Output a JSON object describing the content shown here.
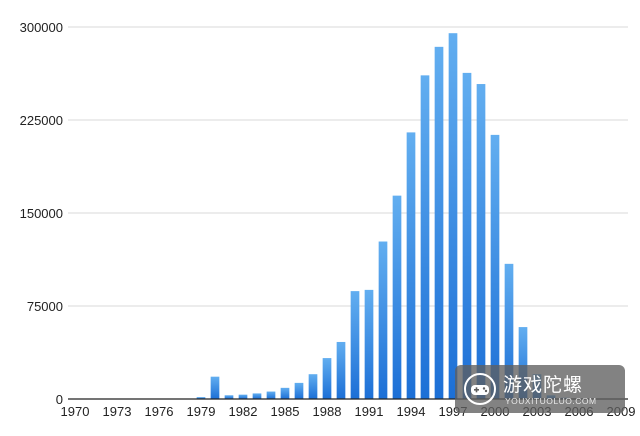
{
  "chart_data": {
    "type": "bar",
    "title": "",
    "xlabel": "",
    "ylabel": "",
    "ylim": [
      0,
      300000
    ],
    "y_ticks": [
      "0",
      "75000",
      "150000",
      "225000",
      "300000"
    ],
    "x_tick_labels": [
      "1970",
      "1973",
      "1976",
      "1979",
      "1982",
      "1985",
      "1988",
      "1991",
      "1994",
      "1997",
      "2000",
      "2003",
      "2006",
      "2009"
    ],
    "grid": "horizontal",
    "legend": "none",
    "bar_color_top": "#62aef0",
    "bar_color_bottom": "#1c6fd6",
    "categories": [
      1970,
      1971,
      1972,
      1973,
      1974,
      1975,
      1976,
      1977,
      1978,
      1979,
      1980,
      1981,
      1982,
      1983,
      1984,
      1985,
      1986,
      1987,
      1988,
      1989,
      1990,
      1991,
      1992,
      1993,
      1994,
      1995,
      1996,
      1997,
      1998,
      1999,
      2000,
      2001,
      2002,
      2003,
      2004,
      2005,
      2006,
      2007,
      2008,
      2009
    ],
    "values": [
      0,
      0,
      0,
      0,
      0,
      0,
      0,
      0,
      0,
      1500,
      18000,
      3000,
      3500,
      4500,
      6000,
      9000,
      13000,
      20000,
      33000,
      46000,
      87000,
      88000,
      127000,
      164000,
      215000,
      261000,
      284000,
      295000,
      263000,
      254000,
      213000,
      109000,
      58000,
      20000,
      3000,
      1000,
      500,
      300,
      200,
      100
    ]
  },
  "watermark": {
    "text": "游戏陀螺",
    "subtext": "YOUXITUOLUO.COM",
    "icon": "gamepad-logo-icon"
  }
}
